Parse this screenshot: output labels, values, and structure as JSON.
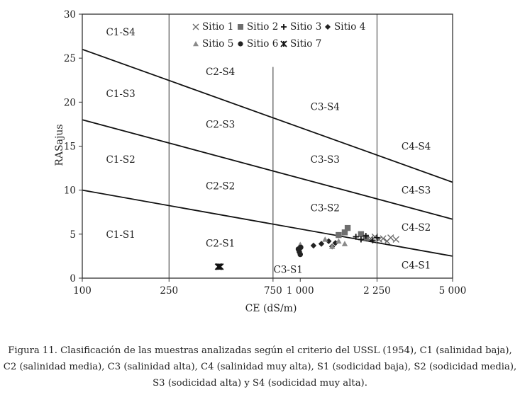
{
  "chart_data": {
    "type": "scatter",
    "x_scale": "log",
    "xlim": [
      100,
      5000
    ],
    "ylim": [
      0,
      30
    ],
    "xlabel": "CE (dS/m)",
    "ylabel": "RASajus",
    "x_ticks": [
      {
        "value": 100,
        "label": "100"
      },
      {
        "value": 250,
        "label": "250"
      },
      {
        "value": 750,
        "label": "750"
      },
      {
        "value": 1000,
        "label": "1 000"
      },
      {
        "value": 2250,
        "label": "2 250"
      },
      {
        "value": 5000,
        "label": "5 000"
      }
    ],
    "y_ticks": [
      0,
      5,
      10,
      15,
      20,
      25,
      30
    ],
    "vertical_lines": [
      250,
      750,
      2250
    ],
    "boundary_lines": [
      {
        "from": [
          100,
          10
        ],
        "to": [
          5000,
          2.5
        ]
      },
      {
        "from": [
          100,
          18
        ],
        "to": [
          5000,
          6.7
        ]
      },
      {
        "from": [
          100,
          26
        ],
        "to": [
          5000,
          10.9
        ]
      }
    ],
    "zone_labels": [
      {
        "text": "C1-S4",
        "x": 150,
        "y": 28
      },
      {
        "text": "C1-S3",
        "x": 150,
        "y": 21
      },
      {
        "text": "C1-S2",
        "x": 150,
        "y": 13.5
      },
      {
        "text": "C1-S1",
        "x": 150,
        "y": 5
      },
      {
        "text": "C2-S4",
        "x": 430,
        "y": 23.5
      },
      {
        "text": "C2-S3",
        "x": 430,
        "y": 17.5
      },
      {
        "text": "C2-S2",
        "x": 430,
        "y": 10.5
      },
      {
        "text": "C2-S1",
        "x": 430,
        "y": 4
      },
      {
        "text": "C3-S4",
        "x": 1300,
        "y": 19.5
      },
      {
        "text": "C3-S3",
        "x": 1300,
        "y": 13.5
      },
      {
        "text": "C3-S2",
        "x": 1300,
        "y": 8
      },
      {
        "text": "C3-S1",
        "x": 880,
        "y": 1
      },
      {
        "text": "C4-S4",
        "x": 3400,
        "y": 15
      },
      {
        "text": "C4-S3",
        "x": 3400,
        "y": 10
      },
      {
        "text": "C4-S2",
        "x": 3400,
        "y": 5.8
      },
      {
        "text": "C4-S1",
        "x": 3400,
        "y": 1.5
      }
    ],
    "legend": {
      "placement": "top-center",
      "rows": [
        [
          "Sitio 1",
          "Sitio 2",
          "Sitio 3",
          "Sitio 4"
        ],
        [
          "Sitio 5",
          "Sitio 6",
          "Sitio 7"
        ]
      ]
    },
    "series": [
      {
        "name": "Sitio 1",
        "marker": "x",
        "points": [
          [
            2100,
            4.5
          ],
          [
            2200,
            4.7
          ],
          [
            2300,
            4.4
          ],
          [
            2400,
            4.5
          ],
          [
            2500,
            4.2
          ],
          [
            2600,
            4.6
          ],
          [
            2750,
            4.4
          ]
        ]
      },
      {
        "name": "Sitio 2",
        "marker": "square",
        "points": [
          [
            1500,
            4.9
          ],
          [
            1600,
            5.2
          ],
          [
            1650,
            5.7
          ],
          [
            1900,
            5.0
          ],
          [
            2000,
            4.6
          ]
        ]
      },
      {
        "name": "Sitio 3",
        "marker": "plus",
        "points": [
          [
            1800,
            4.7
          ],
          [
            1900,
            4.4
          ],
          [
            2000,
            4.8
          ],
          [
            2150,
            4.3
          ],
          [
            2250,
            4.6
          ]
        ]
      },
      {
        "name": "Sitio 4",
        "marker": "diamond",
        "points": [
          [
            1150,
            3.7
          ],
          [
            1250,
            3.9
          ],
          [
            1350,
            4.2
          ],
          [
            1400,
            3.6
          ],
          [
            1450,
            4.0
          ]
        ]
      },
      {
        "name": "Sitio 5",
        "marker": "triangle",
        "points": [
          [
            1000,
            3.8
          ],
          [
            1300,
            4.4
          ],
          [
            1400,
            3.6
          ],
          [
            1500,
            4.2
          ],
          [
            1600,
            3.9
          ]
        ]
      },
      {
        "name": "Sitio 6",
        "marker": "circle",
        "points": [
          [
            980,
            3.3
          ],
          [
            990,
            3.0
          ],
          [
            1000,
            2.7
          ],
          [
            1005,
            3.5
          ]
        ]
      },
      {
        "name": "Sitio 7",
        "marker": "asterisk",
        "points": [
          [
            420,
            1.3
          ],
          [
            425,
            1.3
          ],
          [
            430,
            1.3
          ]
        ]
      }
    ]
  },
  "caption": [
    "Figura 11. Clasificación de las muestras analizadas según el criterio del USSL (1954), C1 (salinidad baja),",
    "C2 (salinidad media), C3 (salinidad alta), C4 (salinidad muy alta), S1 (sodicidad baja), S2 (sodicidad media),",
    "S3 (sodicidad alta) y S4 (sodicidad muy alta)."
  ]
}
